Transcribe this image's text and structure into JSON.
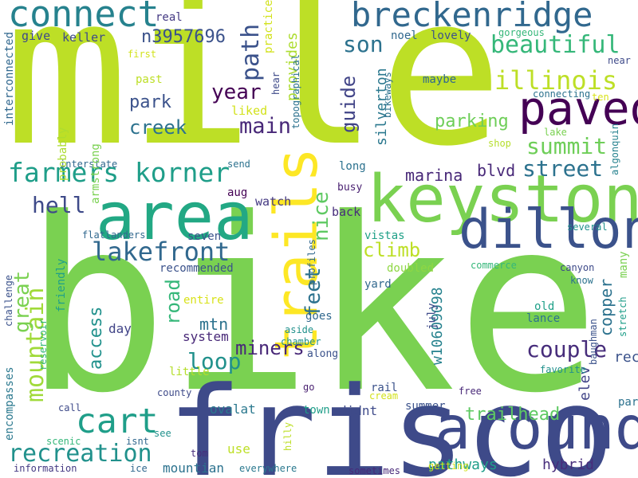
{
  "words": [
    {
      "text": "mile",
      "color": "#bddf26"
    },
    {
      "text": "bike",
      "color": "#7ad151"
    },
    {
      "text": "frisco",
      "color": "#3e4a89"
    },
    {
      "text": "area",
      "color": "#22a884"
    },
    {
      "text": "keystone",
      "color": "#7ad151"
    },
    {
      "text": "trails",
      "color": "#fde725"
    },
    {
      "text": "dillon",
      "color": "#3b528b"
    },
    {
      "text": "around",
      "color": "#3e4a89"
    },
    {
      "text": "breckenridge",
      "color": "#31688e"
    },
    {
      "text": "connect",
      "color": "#26828e"
    },
    {
      "text": "paved",
      "color": "#440154"
    },
    {
      "text": "farmers korner",
      "color": "#1f9e89"
    },
    {
      "text": "cart",
      "color": "#1f9e89"
    },
    {
      "text": "lakefront",
      "color": "#31688e"
    },
    {
      "text": "mountain",
      "color": "#a0da39"
    },
    {
      "text": "recreation",
      "color": "#21918c"
    },
    {
      "text": "illinois",
      "color": "#bddf26"
    },
    {
      "text": "beautiful",
      "color": "#35b779"
    },
    {
      "text": "path",
      "color": "#3b528b"
    },
    {
      "text": "year",
      "color": "#440154"
    },
    {
      "text": "main",
      "color": "#482878"
    },
    {
      "text": "son",
      "color": "#2c728e"
    },
    {
      "text": "guide",
      "color": "#414487"
    },
    {
      "text": "summit",
      "color": "#6ece58"
    },
    {
      "text": "street",
      "color": "#2c728e"
    },
    {
      "text": "couple",
      "color": "#472d7b"
    },
    {
      "text": "loop",
      "color": "#21918c"
    },
    {
      "text": "road",
      "color": "#35b779"
    },
    {
      "text": "climb",
      "color": "#bddf26"
    },
    {
      "text": "great",
      "color": "#7ad151"
    },
    {
      "text": "feet",
      "color": "#2c728e"
    },
    {
      "text": "nice",
      "color": "#5ec962"
    },
    {
      "text": "hell",
      "color": "#3e4a89"
    },
    {
      "text": "access",
      "color": "#21918c"
    },
    {
      "text": "miners",
      "color": "#482878"
    },
    {
      "text": "parking",
      "color": "#6ece58"
    },
    {
      "text": "creek",
      "color": "#2c728e"
    },
    {
      "text": "park",
      "color": "#3b528b"
    },
    {
      "text": "n3957696",
      "color": "#3b528b"
    },
    {
      "text": "marina",
      "color": "#482878"
    },
    {
      "text": "blvd",
      "color": "#482878"
    },
    {
      "text": "trailhead",
      "color": "#5ec962"
    },
    {
      "text": "mtn",
      "color": "#2c728e"
    },
    {
      "text": "provides",
      "color": "#addc30"
    },
    {
      "text": "silverton",
      "color": "#2a788e"
    },
    {
      "text": "copper",
      "color": "#2c728e"
    },
    {
      "text": "elev",
      "color": "#414487"
    },
    {
      "text": "rec",
      "color": "#3b528b"
    },
    {
      "text": "w10609098",
      "color": "#26828e"
    },
    {
      "text": "practice",
      "color": "#d2e21b"
    },
    {
      "text": "keller",
      "color": "#3e4a89"
    },
    {
      "text": "give",
      "color": "#3e4a89"
    },
    {
      "text": "real",
      "color": "#443983"
    },
    {
      "text": "noel",
      "color": "#31688e"
    },
    {
      "text": "lovely",
      "color": "#3b528b"
    },
    {
      "text": "gorgeous",
      "color": "#35b779"
    },
    {
      "text": "first",
      "color": "#d2e21b"
    },
    {
      "text": "past",
      "color": "#bddf26"
    },
    {
      "text": "maybe",
      "color": "#31688e"
    },
    {
      "text": "connecting",
      "color": "#2c728e"
    },
    {
      "text": "ten",
      "color": "#d8e219"
    },
    {
      "text": "liked",
      "color": "#d2e21b"
    },
    {
      "text": "lake",
      "color": "#7ad151"
    },
    {
      "text": "shop",
      "color": "#b5de2b"
    },
    {
      "text": "interstate",
      "color": "#31688e"
    },
    {
      "text": "send",
      "color": "#2c728e"
    },
    {
      "text": "long",
      "color": "#2c728e"
    },
    {
      "text": "busy",
      "color": "#481f70"
    },
    {
      "text": "aug",
      "color": "#440154"
    },
    {
      "text": "watch",
      "color": "#443983"
    },
    {
      "text": "back",
      "color": "#472d7b"
    },
    {
      "text": "seven",
      "color": "#3b528b"
    },
    {
      "text": "flatlanders",
      "color": "#31688e"
    },
    {
      "text": "vistas",
      "color": "#1fa088"
    },
    {
      "text": "doubled",
      "color": "#8fd744"
    },
    {
      "text": "recommended",
      "color": "#3b528b"
    },
    {
      "text": "yard",
      "color": "#31688e"
    },
    {
      "text": "entire",
      "color": "#d8e219"
    },
    {
      "text": "goes",
      "color": "#31688e"
    },
    {
      "text": "old",
      "color": "#1fa088"
    },
    {
      "text": "lance",
      "color": "#2c728e"
    },
    {
      "text": "day",
      "color": "#414487"
    },
    {
      "text": "system",
      "color": "#482878"
    },
    {
      "text": "along",
      "color": "#3b528b"
    },
    {
      "text": "little",
      "color": "#b5de2b"
    },
    {
      "text": "favorite",
      "color": "#21918c"
    },
    {
      "text": "county",
      "color": "#3e4a89"
    },
    {
      "text": "go",
      "color": "#481f70"
    },
    {
      "text": "rail",
      "color": "#3b528b"
    },
    {
      "text": "free",
      "color": "#482878"
    },
    {
      "text": "cream",
      "color": "#d2e21b"
    },
    {
      "text": "part",
      "color": "#2c728e"
    },
    {
      "text": "call",
      "color": "#3e4a89"
    },
    {
      "text": "ovalat",
      "color": "#2a788e"
    },
    {
      "text": "town",
      "color": "#1f9e89"
    },
    {
      "text": "didnt",
      "color": "#3e4a89"
    },
    {
      "text": "summer",
      "color": "#3b528b"
    },
    {
      "text": "hybrid",
      "color": "#472d7b"
    },
    {
      "text": "isnt",
      "color": "#31688e"
    },
    {
      "text": "see",
      "color": "#21918c"
    },
    {
      "text": "scenic",
      "color": "#35b779"
    },
    {
      "text": "tom",
      "color": "#472d7b"
    },
    {
      "text": "use",
      "color": "#bddf26"
    },
    {
      "text": "mountian",
      "color": "#2c728e"
    },
    {
      "text": "pathways",
      "color": "#1f9e89"
    },
    {
      "text": "information",
      "color": "#443983"
    },
    {
      "text": "ice",
      "color": "#31688e"
    },
    {
      "text": "everywhere",
      "color": "#2a788e"
    },
    {
      "text": "sometimes",
      "color": "#482878"
    },
    {
      "text": "getting",
      "color": "#d2e21b"
    },
    {
      "text": "canyon",
      "color": "#3e4a89"
    },
    {
      "text": "know",
      "color": "#2c728e"
    },
    {
      "text": "several",
      "color": "#21918c"
    },
    {
      "text": "commerce",
      "color": "#35b779"
    },
    {
      "text": "chamber",
      "color": "#21918c"
    },
    {
      "text": "aside",
      "color": "#21918c"
    },
    {
      "text": "near",
      "color": "#3e4a89"
    },
    {
      "text": "interconnected",
      "color": "#31688e"
    },
    {
      "text": "armstrong",
      "color": "#7ad151"
    },
    {
      "text": "probably",
      "color": "#addc30"
    },
    {
      "text": "encompasses",
      "color": "#2a788e"
    },
    {
      "text": "challenge",
      "color": "#3b528b"
    },
    {
      "text": "reservoir",
      "color": "#35b779"
    },
    {
      "text": "friendly",
      "color": "#1fa088"
    },
    {
      "text": "hear",
      "color": "#3e4a89"
    },
    {
      "text": "topographical",
      "color": "#2c728e"
    },
    {
      "text": "bikeways",
      "color": "#2c728e"
    },
    {
      "text": "july",
      "color": "#3e4a89"
    },
    {
      "text": "profiles",
      "color": "#31688e"
    },
    {
      "text": "baughman",
      "color": "#3b528b"
    },
    {
      "text": "stretch",
      "color": "#1f9e89"
    },
    {
      "text": "many",
      "color": "#7ad151"
    },
    {
      "text": "algonquin",
      "color": "#26828e"
    },
    {
      "text": "hilly",
      "color": "#bddf26"
    }
  ]
}
